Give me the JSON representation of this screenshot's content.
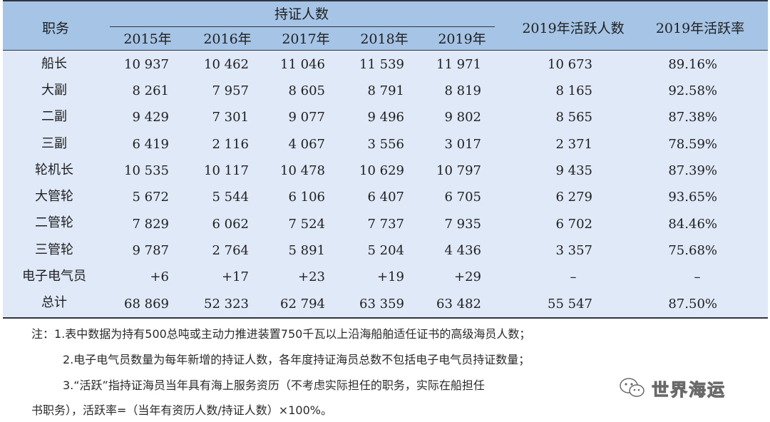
{
  "table": {
    "headers": {
      "position": "职务",
      "group": "持证人数",
      "years": [
        "2015年",
        "2016年",
        "2017年",
        "2018年",
        "2019年"
      ],
      "active": "2019年活跃人数",
      "rate": "2019年活跃率"
    },
    "rows": [
      {
        "position": "船长",
        "vals": [
          "10 937",
          "10 462",
          "11 046",
          "11 539",
          "11 971"
        ],
        "active": "10 673",
        "rate": "89.16%"
      },
      {
        "position": "大副",
        "vals": [
          "8 261",
          "7 957",
          "8 605",
          "8 791",
          "8 819"
        ],
        "active": "8 165",
        "rate": "92.58%"
      },
      {
        "position": "二副",
        "vals": [
          "9 429",
          "7 301",
          "9 077",
          "9 496",
          "9 802"
        ],
        "active": "8 565",
        "rate": "87.38%"
      },
      {
        "position": "三副",
        "vals": [
          "6 419",
          "2 116",
          "4 067",
          "3 556",
          "3 017"
        ],
        "active": "2 371",
        "rate": "78.59%"
      },
      {
        "position": "轮机长",
        "vals": [
          "10 535",
          "10 117",
          "10 478",
          "10 629",
          "10 797"
        ],
        "active": "9 435",
        "rate": "87.39%"
      },
      {
        "position": "大管轮",
        "vals": [
          "5 672",
          "5 544",
          "6 106",
          "6 407",
          "6 705"
        ],
        "active": "6 279",
        "rate": "93.65%"
      },
      {
        "position": "二管轮",
        "vals": [
          "7 829",
          "6 062",
          "7 524",
          "7 737",
          "7 935"
        ],
        "active": "6 702",
        "rate": "84.46%"
      },
      {
        "position": "三管轮",
        "vals": [
          "9 787",
          "2 764",
          "5 891",
          "5 204",
          "4 436"
        ],
        "active": "3 357",
        "rate": "75.68%"
      },
      {
        "position": "电子电气员",
        "vals": [
          "+6",
          "+17",
          "+23",
          "+19",
          "+29"
        ],
        "active": "–",
        "rate": "–"
      },
      {
        "position": "总计",
        "vals": [
          "68 869",
          "52 323",
          "62 794",
          "63 359",
          "63 482"
        ],
        "active": "55 547",
        "rate": "87.50%"
      }
    ]
  },
  "notes": [
    "注：1.表中数据为持有500总吨或主动力推进装置750千瓦以上沿海船舶适任证书的高级海员人数；",
    "2.电子电气员数量为每年新增的持证人数，各年度持证海员总数不包括电子电气员持证数量；",
    "3.“活跃”指持证海员当年具有海上服务资历（不考虑实际担任的职务，实际在船担任",
    "书职务），活跃率=（当年有资历人数/持证人数）×100%。"
  ],
  "watermark": {
    "text": "世界海运",
    "icon": "wechat-icon"
  }
}
